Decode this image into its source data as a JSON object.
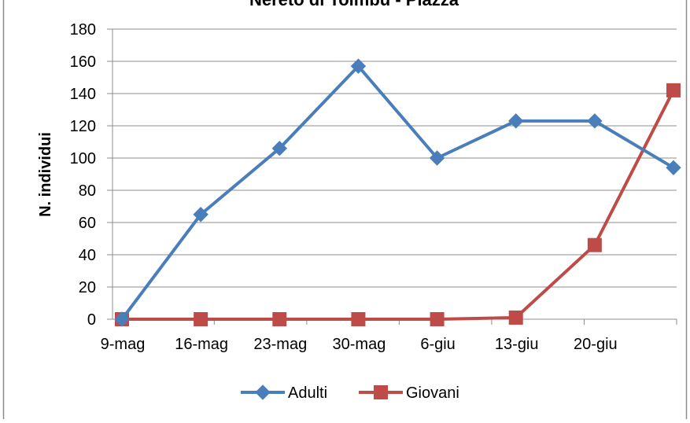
{
  "chart_data": {
    "type": "line",
    "title": "Nereto di Tolmbu - Piazza",
    "xlabel": "",
    "ylabel": "N. individui",
    "categories": [
      "9-mag",
      "16-mag",
      "23-mag",
      "30-mag",
      "6-giu",
      "13-giu",
      "20-giu",
      ""
    ],
    "ylim": [
      0,
      180
    ],
    "yticks": [
      0,
      20,
      40,
      60,
      80,
      100,
      120,
      140,
      160,
      180
    ],
    "grid": true,
    "legend_position": "bottom",
    "series": [
      {
        "name": "Adulti",
        "color": "#4a7ebb",
        "marker": "diamond",
        "values": [
          0,
          65,
          106,
          157,
          100,
          123,
          123,
          94
        ]
      },
      {
        "name": "Giovani",
        "color": "#be4b48",
        "marker": "square",
        "values": [
          0,
          0,
          0,
          0,
          0,
          1,
          46,
          142
        ]
      }
    ]
  }
}
